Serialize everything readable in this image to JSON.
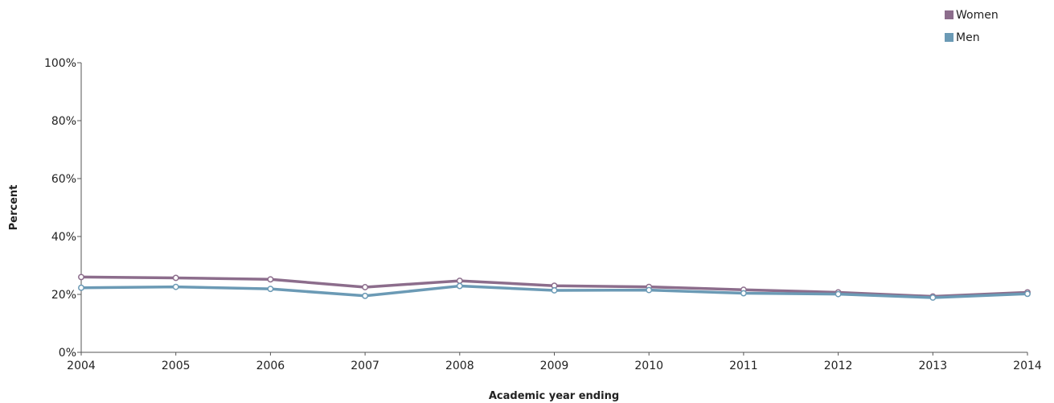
{
  "chart_data": {
    "type": "line",
    "title": "",
    "xlabel": "Academic year ending",
    "ylabel": "Percent",
    "x": [
      "2004",
      "2005",
      "2006",
      "2007",
      "2008",
      "2009",
      "2010",
      "2011",
      "2012",
      "2013",
      "2014"
    ],
    "ylim": [
      0,
      100
    ],
    "y_ticks": [
      "0%",
      "20%",
      "40%",
      "60%",
      "80%",
      "100%"
    ],
    "y_tick_values": [
      0,
      20,
      40,
      60,
      80,
      100
    ],
    "grid": false,
    "legend_position": "top-right",
    "series": [
      {
        "name": "Women",
        "color": "#8c6d8c",
        "values": [
          26,
          25.7,
          25.2,
          22.5,
          24.7,
          23,
          22.6,
          21.6,
          20.7,
          19.3,
          20.7
        ]
      },
      {
        "name": "Men",
        "color": "#6b9ab5",
        "values": [
          22.3,
          22.6,
          21.9,
          19.5,
          22.9,
          21.4,
          21.5,
          20.4,
          20.1,
          18.9,
          20.2
        ]
      }
    ]
  }
}
